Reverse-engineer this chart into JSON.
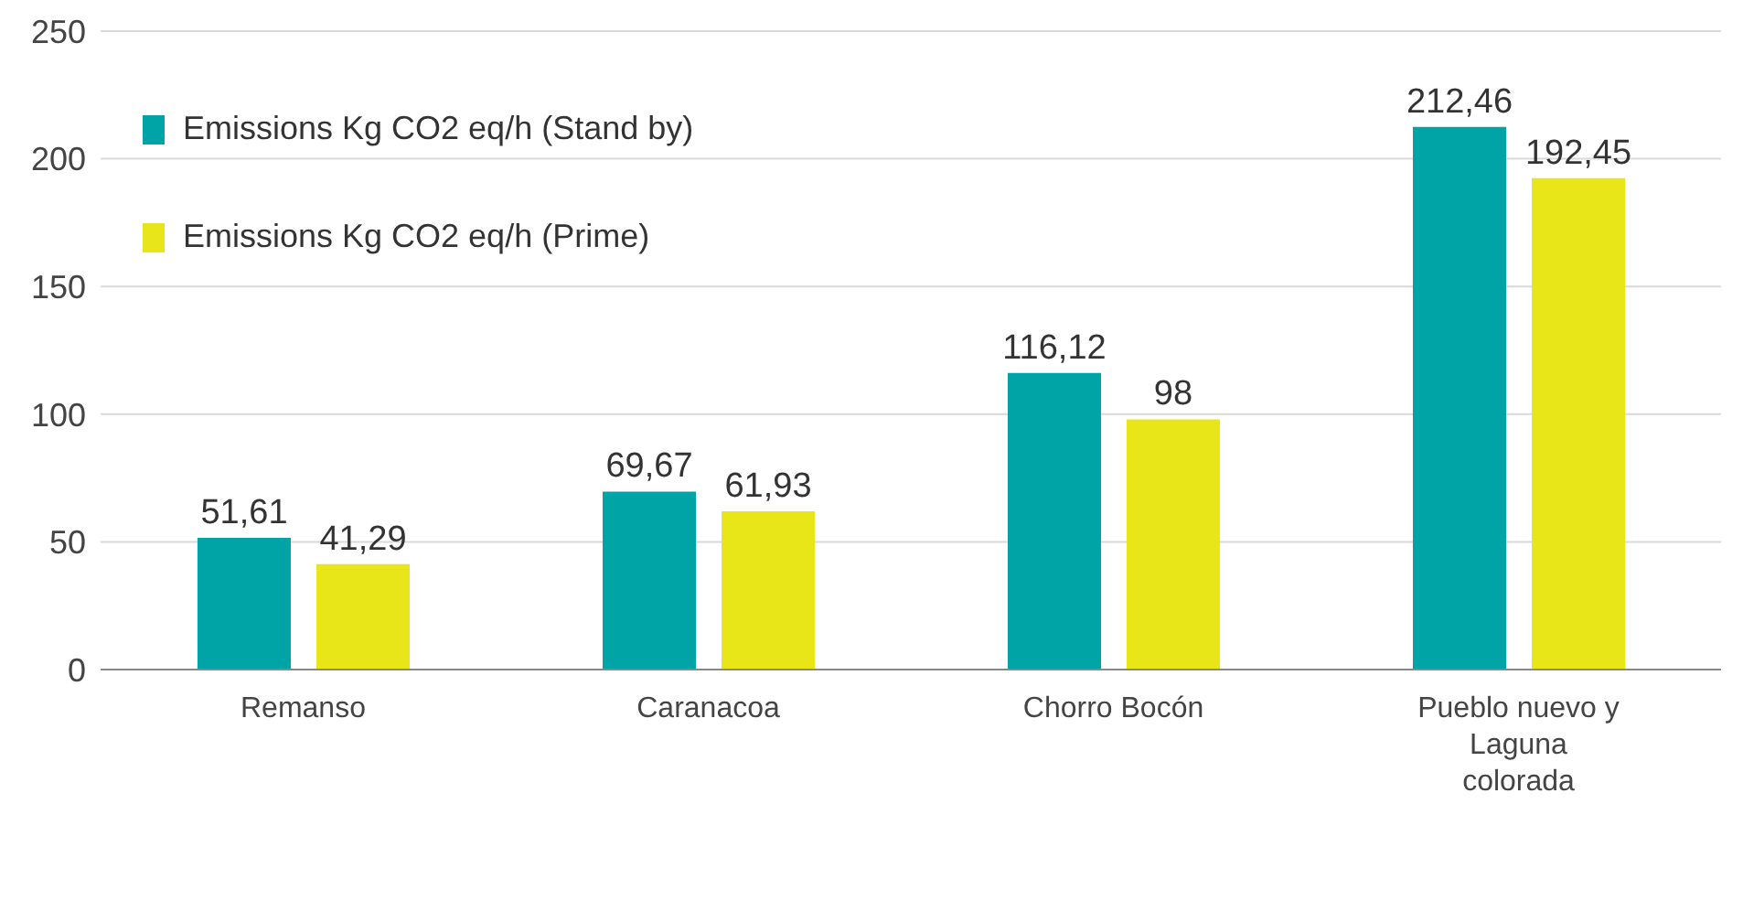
{
  "chart_data": {
    "type": "bar",
    "categories": [
      "Remanso",
      "Caranacoa",
      "Chorro Bocón",
      "Pueblo nuevo y Laguna colorada"
    ],
    "series": [
      {
        "name": "Emissions Kg CO2 eq/h (Stand by)",
        "color": "#00a3a6",
        "values": [
          51.61,
          69.67,
          116.12,
          212.46
        ],
        "value_labels": [
          "51,61",
          "69,67",
          "116,12",
          "212,46"
        ]
      },
      {
        "name": "Emissions Kg CO2 eq/h (Prime)",
        "color": "#e8e619",
        "values": [
          41.29,
          61.93,
          98,
          192.45
        ],
        "value_labels": [
          "41,29",
          "61,93",
          "98",
          "192,45"
        ]
      }
    ],
    "ylim": [
      0,
      250
    ],
    "yticks": [
      0,
      50,
      100,
      150,
      200,
      250
    ],
    "grid": "y",
    "legend": "top left"
  }
}
